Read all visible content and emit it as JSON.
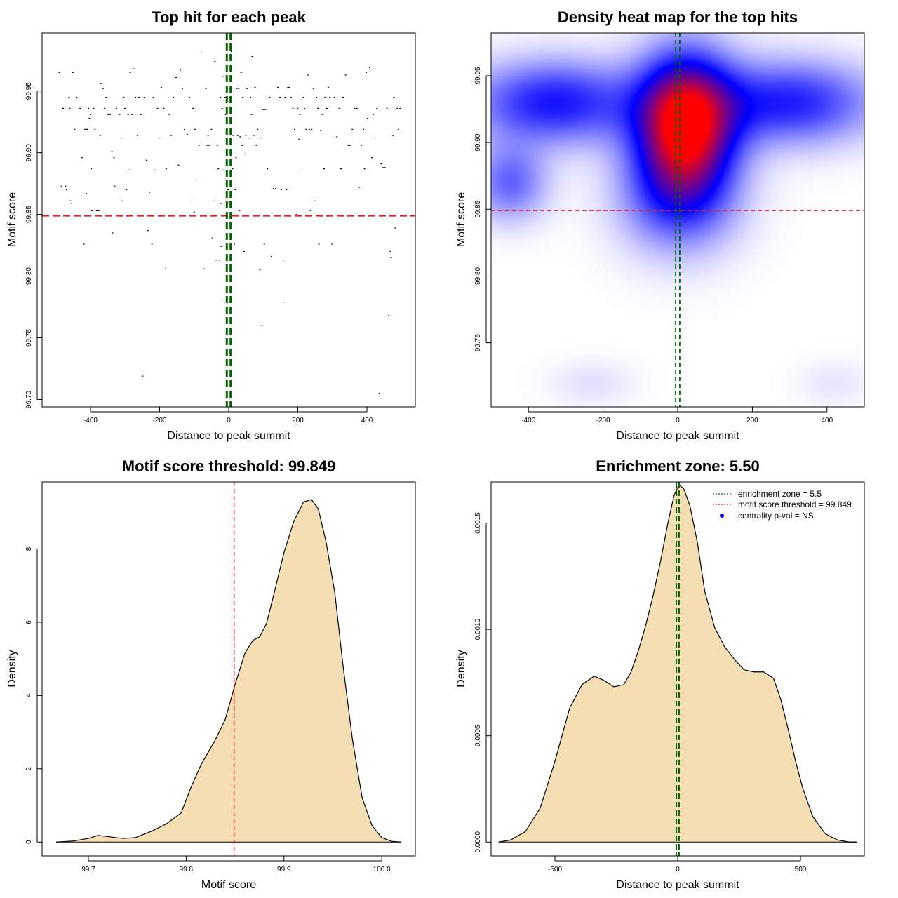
{
  "colors": {
    "threshold_line": "#dd2222",
    "zone_line": "#006400",
    "density_fill": "#f5deb3",
    "heat_low": "#ffffff",
    "heat_mid": "#0000ff",
    "heat_high": "#ff0000",
    "point": "#000000",
    "legend_dot": "#0000ff"
  },
  "chart_data": [
    {
      "id": "scatter",
      "type": "scatter",
      "title": "Top hit for each peak",
      "xlabel": "Distance to peak summit",
      "ylabel": "Motif score",
      "xlim": [
        -540,
        540
      ],
      "ylim": [
        99.694,
        99.997
      ],
      "xticks": [
        -400,
        -200,
        0,
        200,
        400
      ],
      "yticks": [
        99.7,
        99.75,
        99.8,
        99.85,
        99.9,
        99.95
      ],
      "xtick_labels": [
        "-400",
        "-200",
        "0",
        "200",
        "400"
      ],
      "ytick_labels": [
        "99.70",
        "99.75",
        "99.80",
        "99.85",
        "99.90",
        "99.95"
      ],
      "hline": 99.849,
      "vlines": [
        -5.5,
        5.5
      ],
      "points": [
        [
          -490,
          99.965
        ],
        [
          -484,
          99.873
        ],
        [
          -479,
          99.936
        ],
        [
          -472,
          99.873
        ],
        [
          -469,
          99.87
        ],
        [
          -462,
          99.945
        ],
        [
          -460,
          99.936
        ],
        [
          -458,
          99.861
        ],
        [
          -455,
          99.859
        ],
        [
          -451,
          99.965
        ],
        [
          -446,
          99.919
        ],
        [
          -440,
          99.945
        ],
        [
          -430,
          99.936
        ],
        [
          -424,
          99.896
        ],
        [
          -419,
          99.826
        ],
        [
          -416,
          99.919
        ],
        [
          -412,
          99.867
        ],
        [
          -410,
          99.919
        ],
        [
          -406,
          99.936
        ],
        [
          -403,
          99.928
        ],
        [
          -400,
          99.931
        ],
        [
          -398,
          99.887
        ],
        [
          -396,
          99.853
        ],
        [
          -391,
          99.936
        ],
        [
          -387,
          99.919
        ],
        [
          -382,
          99.853
        ],
        [
          -376,
          99.853
        ],
        [
          -372,
          99.914
        ],
        [
          -370,
          99.956
        ],
        [
          -364,
          99.952
        ],
        [
          -359,
          99.936
        ],
        [
          -355,
          99.945
        ],
        [
          -349,
          99.931
        ],
        [
          -343,
          99.931
        ],
        [
          -338,
          99.901
        ],
        [
          -336,
          99.835
        ],
        [
          -332,
          99.896
        ],
        [
          -330,
          99.873
        ],
        [
          -325,
          99.936
        ],
        [
          -316,
          99.931
        ],
        [
          -312,
          99.912
        ],
        [
          -309,
          99.861
        ],
        [
          -304,
          99.945
        ],
        [
          -300,
          99.936
        ],
        [
          -296,
          99.87
        ],
        [
          -291,
          99.931
        ],
        [
          -288,
          99.886
        ],
        [
          -285,
          99.965
        ],
        [
          -280,
          99.931
        ],
        [
          -275,
          99.968
        ],
        [
          -270,
          99.945
        ],
        [
          -264,
          99.914
        ],
        [
          -260,
          99.945
        ],
        [
          -254,
          99.931
        ],
        [
          -249,
          99.719
        ],
        [
          -244,
          99.945
        ],
        [
          -238,
          99.894
        ],
        [
          -234,
          99.837
        ],
        [
          -229,
          99.868
        ],
        [
          -222,
          99.826
        ],
        [
          -218,
          99.945
        ],
        [
          -213,
          99.886
        ],
        [
          -206,
          99.936
        ],
        [
          -200,
          99.912
        ],
        [
          -195,
          99.953
        ],
        [
          -188,
          99.936
        ],
        [
          -183,
          99.806
        ],
        [
          -181,
          99.887
        ],
        [
          -172,
          99.931
        ],
        [
          -166,
          99.914
        ],
        [
          -160,
          99.945
        ],
        [
          -152,
          99.961
        ],
        [
          -145,
          99.89
        ],
        [
          -140,
          99.967
        ],
        [
          -134,
          99.952
        ],
        [
          -128,
          99.919
        ],
        [
          -120,
          99.915
        ],
        [
          -114,
          99.945
        ],
        [
          -107,
          99.861
        ],
        [
          -103,
          99.936
        ],
        [
          -100,
          99.852
        ],
        [
          -97,
          99.919
        ],
        [
          -93,
          99.878
        ],
        [
          -86,
          99.906
        ],
        [
          -79,
          99.981
        ],
        [
          -72,
          99.806
        ],
        [
          -66,
          99.952
        ],
        [
          -62,
          99.906
        ],
        [
          -60,
          99.914
        ],
        [
          -56,
          99.906
        ],
        [
          -50,
          99.919
        ],
        [
          -47,
          99.831
        ],
        [
          -42,
          99.861
        ],
        [
          -40,
          99.974
        ],
        [
          -36,
          99.813
        ],
        [
          -33,
          99.906
        ],
        [
          -30,
          99.887
        ],
        [
          -27,
          99.813
        ],
        [
          -24,
          99.945
        ],
        [
          -22,
          99.859
        ],
        [
          -21,
          99.824
        ],
        [
          -19,
          99.936
        ],
        [
          -16,
          99.886
        ],
        [
          -15,
          99.962
        ],
        [
          -13,
          99.779
        ],
        [
          -11,
          99.945
        ],
        [
          -9,
          99.931
        ],
        [
          -7,
          99.917
        ],
        [
          -2,
          99.87
        ],
        [
          2,
          99.86
        ],
        [
          3,
          99.945
        ],
        [
          5,
          99.919
        ],
        [
          8,
          99.982
        ],
        [
          11,
          99.887
        ],
        [
          13,
          99.914
        ],
        [
          16,
          99.826
        ],
        [
          19,
          99.87
        ],
        [
          21,
          99.896
        ],
        [
          23,
          99.952
        ],
        [
          26,
          99.914
        ],
        [
          29,
          99.952
        ],
        [
          31,
          99.853
        ],
        [
          33,
          99.913
        ],
        [
          36,
          99.965
        ],
        [
          39,
          99.906
        ],
        [
          41,
          99.945
        ],
        [
          44,
          99.82
        ],
        [
          47,
          99.899
        ],
        [
          50,
          99.914
        ],
        [
          53,
          99.952
        ],
        [
          58,
          99.912
        ],
        [
          63,
          99.945
        ],
        [
          66,
          99.931
        ],
        [
          68,
          99.978
        ],
        [
          72,
          99.914
        ],
        [
          76,
          99.953
        ],
        [
          80,
          99.906
        ],
        [
          84,
          99.919
        ],
        [
          90,
          99.805
        ],
        [
          94,
          99.912
        ],
        [
          96,
          99.76
        ],
        [
          99,
          99.935
        ],
        [
          103,
          99.826
        ],
        [
          106,
          99.935
        ],
        [
          112,
          99.887
        ],
        [
          118,
          99.945
        ],
        [
          124,
          99.816
        ],
        [
          130,
          99.871
        ],
        [
          136,
          99.871
        ],
        [
          142,
          99.953
        ],
        [
          148,
          99.945
        ],
        [
          152,
          99.87
        ],
        [
          158,
          99.813
        ],
        [
          160,
          99.779
        ],
        [
          163,
          99.945
        ],
        [
          167,
          99.87
        ],
        [
          171,
          99.953
        ],
        [
          175,
          99.953
        ],
        [
          180,
          99.945
        ],
        [
          186,
          99.936
        ],
        [
          191,
          99.919
        ],
        [
          196,
          99.85
        ],
        [
          199,
          99.936
        ],
        [
          204,
          99.911
        ],
        [
          206,
          99.931
        ],
        [
          211,
          99.886
        ],
        [
          216,
          99.945
        ],
        [
          219,
          99.936
        ],
        [
          224,
          99.919
        ],
        [
          229,
          99.963
        ],
        [
          233,
          99.919
        ],
        [
          237,
          99.853
        ],
        [
          240,
          99.919
        ],
        [
          245,
          99.952
        ],
        [
          248,
          99.861
        ],
        [
          254,
          99.945
        ],
        [
          258,
          99.936
        ],
        [
          261,
          99.826
        ],
        [
          266,
          99.918
        ],
        [
          271,
          99.931
        ],
        [
          276,
          99.887
        ],
        [
          279,
          99.945
        ],
        [
          284,
          99.936
        ],
        [
          288,
          99.953
        ],
        [
          293,
          99.945
        ],
        [
          299,
          99.826
        ],
        [
          306,
          99.945
        ],
        [
          313,
          99.913
        ],
        [
          320,
          99.936
        ],
        [
          325,
          99.887
        ],
        [
          331,
          99.945
        ],
        [
          338,
          99.963
        ],
        [
          346,
          99.906
        ],
        [
          351,
          99.906
        ],
        [
          358,
          99.919
        ],
        [
          364,
          99.936
        ],
        [
          371,
          99.936
        ],
        [
          378,
          99.872
        ],
        [
          384,
          99.906
        ],
        [
          390,
          99.919
        ],
        [
          393,
          99.887
        ],
        [
          398,
          99.965
        ],
        [
          402,
          99.928
        ],
        [
          408,
          99.969
        ],
        [
          414,
          99.896
        ],
        [
          418,
          99.931
        ],
        [
          423,
          99.912
        ],
        [
          429,
          99.936
        ],
        [
          436,
          99.705
        ],
        [
          441,
          99.891
        ],
        [
          447,
          99.888
        ],
        [
          452,
          99.888
        ],
        [
          458,
          99.936
        ],
        [
          463,
          99.768
        ],
        [
          468,
          99.82
        ],
        [
          470,
          99.815
        ],
        [
          475,
          99.914
        ],
        [
          478,
          99.945
        ],
        [
          482,
          99.839
        ],
        [
          488,
          99.936
        ],
        [
          491,
          99.919
        ],
        [
          496,
          99.936
        ]
      ]
    },
    {
      "id": "heatmap",
      "type": "heatmap",
      "title": "Density heat map for the top hits",
      "xlabel": "Distance to peak summit",
      "ylabel": "Motif score",
      "xlim": [
        -500,
        500
      ],
      "ylim": [
        99.702,
        99.982
      ],
      "xticks": [
        -400,
        -200,
        0,
        200,
        400
      ],
      "yticks": [
        99.75,
        99.8,
        99.85,
        99.9,
        99.95
      ],
      "xtick_labels": [
        "-400",
        "-200",
        "0",
        "200",
        "400"
      ],
      "ytick_labels": [
        "99.75",
        "99.80",
        "99.85",
        "99.90",
        "99.95"
      ],
      "hline": 99.849,
      "vlines": [
        -5.5,
        5.5
      ],
      "blobs": [
        {
          "x": 20,
          "y": 99.915,
          "sx": 90,
          "sy": 0.035,
          "w": 1.0
        },
        {
          "x": -330,
          "y": 99.93,
          "sx": 160,
          "sy": 0.022,
          "w": 0.46
        },
        {
          "x": 300,
          "y": 99.93,
          "sx": 160,
          "sy": 0.022,
          "w": 0.44
        },
        {
          "x": -450,
          "y": 99.87,
          "sx": 70,
          "sy": 0.02,
          "w": 0.3
        },
        {
          "x": 0,
          "y": 99.86,
          "sx": 110,
          "sy": 0.03,
          "w": 0.35
        },
        {
          "x": -230,
          "y": 99.72,
          "sx": 80,
          "sy": 0.012,
          "w": 0.06
        },
        {
          "x": 420,
          "y": 99.72,
          "sx": 70,
          "sy": 0.012,
          "w": 0.05
        }
      ]
    },
    {
      "id": "score_density",
      "type": "area",
      "title": "Motif score threshold: 99.849",
      "xlabel": "Motif score",
      "ylabel": "Density",
      "xlim": [
        99.6527,
        100.0343
      ],
      "ylim": [
        -0.378,
        9.828
      ],
      "xticks": [
        99.7,
        99.8,
        99.9,
        100.0
      ],
      "yticks": [
        0,
        2,
        4,
        6,
        8
      ],
      "xtick_labels": [
        "99.7",
        "99.8",
        "99.9",
        "100.0"
      ],
      "ytick_labels": [
        "0",
        "2",
        "4",
        "6",
        "8"
      ],
      "vline": 99.849,
      "x": [
        99.667,
        99.685,
        99.7,
        99.71,
        99.72,
        99.735,
        99.748,
        99.765,
        99.78,
        99.795,
        99.805,
        99.815,
        99.83,
        99.84,
        99.85,
        99.86,
        99.868,
        99.875,
        99.882,
        99.89,
        99.9,
        99.91,
        99.92,
        99.928,
        99.935,
        99.943,
        99.952,
        99.96,
        99.97,
        99.98,
        99.99,
        100.0,
        100.01,
        100.02
      ],
      "y": [
        0,
        0.03,
        0.1,
        0.18,
        0.15,
        0.1,
        0.12,
        0.3,
        0.5,
        0.8,
        1.5,
        2.1,
        2.8,
        3.35,
        4.3,
        5.15,
        5.5,
        5.6,
        5.95,
        6.8,
        7.9,
        8.75,
        9.28,
        9.35,
        9.1,
        8.2,
        6.8,
        4.9,
        2.8,
        1.2,
        0.45,
        0.12,
        0.02,
        0
      ]
    },
    {
      "id": "distance_density",
      "type": "area",
      "title": "Enrichment zone: 5.50",
      "xlabel": "Distance to peak summit",
      "ylabel": "Density",
      "xlim": [
        -760,
        760
      ],
      "ylim": [
        -6.51e-05,
        0.001693
      ],
      "xticks": [
        -500,
        0,
        500
      ],
      "yticks": [
        0,
        0.0005,
        0.001,
        0.0015
      ],
      "xtick_labels": [
        "-500",
        "0",
        "500"
      ],
      "ytick_labels": [
        "0.0000",
        "0.0005",
        "0.0010",
        "0.0015"
      ],
      "vlines": [
        -5.5,
        5.5
      ],
      "x": [
        -730,
        -680,
        -620,
        -560,
        -500,
        -440,
        -390,
        -340,
        -300,
        -260,
        -220,
        -190,
        -160,
        -130,
        -100,
        -70,
        -40,
        -15,
        5,
        25,
        50,
        80,
        110,
        150,
        190,
        230,
        270,
        310,
        350,
        390,
        420,
        450,
        480,
        510,
        550,
        600,
        650,
        700,
        730
      ],
      "y": [
        0,
        1e-05,
        5e-05,
        0.00016,
        0.00038,
        0.00063,
        0.00074,
        0.00078,
        0.00076,
        0.00073,
        0.00074,
        0.0008,
        0.0009,
        0.00102,
        0.00116,
        0.00132,
        0.0015,
        0.00163,
        0.00168,
        0.00166,
        0.00158,
        0.00141,
        0.00118,
        0.00101,
        0.00092,
        0.00086,
        0.00081,
        0.0008,
        0.0008,
        0.00077,
        0.00067,
        0.00053,
        0.00038,
        0.00025,
        0.00012,
        4e-05,
        1e-05,
        0,
        0
      ],
      "legend": [
        {
          "label": "enrichment zone = 5.5",
          "style": "dotted",
          "color": "#006400"
        },
        {
          "label": "motif score threshold = 99.849",
          "style": "dotted",
          "color": "#dd2222"
        },
        {
          "label": "centrality p-val = NS",
          "style": "dot",
          "color": "#0000ff"
        }
      ]
    }
  ]
}
